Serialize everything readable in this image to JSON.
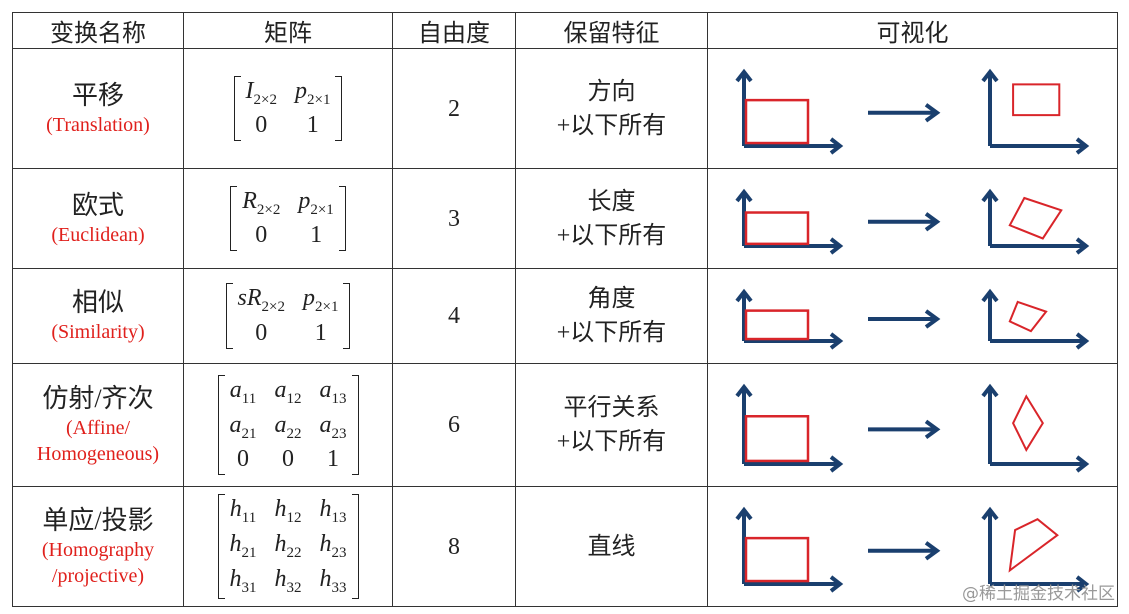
{
  "header": [
    "变换名称",
    "矩阵",
    "自由度",
    "保留特征",
    "可视化"
  ],
  "rows": [
    {
      "name": "平移",
      "en": [
        "(Translation)"
      ],
      "matrix": [
        [
          {
            "base": "I",
            "sub": "2×2"
          },
          {
            "base": "p",
            "sub": "2×1"
          }
        ],
        [
          {
            "base": "0"
          },
          {
            "base": "1"
          }
        ]
      ],
      "dof": "2",
      "features": [
        "方向",
        "+以下所有"
      ]
    },
    {
      "name": "欧式",
      "en": [
        "(Euclidean)"
      ],
      "matrix": [
        [
          {
            "base": "R",
            "sub": "2×2"
          },
          {
            "base": "p",
            "sub": "2×1"
          }
        ],
        [
          {
            "base": "0"
          },
          {
            "base": "1"
          }
        ]
      ],
      "dof": "3",
      "features": [
        "长度",
        "+以下所有"
      ]
    },
    {
      "name": "相似",
      "en": [
        "(Similarity)"
      ],
      "matrix": [
        [
          {
            "base": "sR",
            "sub": "2×2"
          },
          {
            "base": "p",
            "sub": "2×1"
          }
        ],
        [
          {
            "base": "0"
          },
          {
            "base": "1"
          }
        ]
      ],
      "dof": "4",
      "features": [
        "角度",
        "+以下所有"
      ]
    },
    {
      "name": "仿射/齐次",
      "en": [
        "(Affine/",
        "Homogeneous)"
      ],
      "matrix": [
        [
          {
            "base": "a",
            "sub": "11"
          },
          {
            "base": "a",
            "sub": "12"
          },
          {
            "base": "a",
            "sub": "13"
          }
        ],
        [
          {
            "base": "a",
            "sub": "21"
          },
          {
            "base": "a",
            "sub": "22"
          },
          {
            "base": "a",
            "sub": "23"
          }
        ],
        [
          {
            "base": "0"
          },
          {
            "base": "0"
          },
          {
            "base": "1"
          }
        ]
      ],
      "dof": "6",
      "features": [
        "平行关系",
        "+以下所有"
      ]
    },
    {
      "name": "单应/投影",
      "en": [
        "(Homography",
        "/projective)"
      ],
      "matrix": [
        [
          {
            "base": "h",
            "sub": "11"
          },
          {
            "base": "h",
            "sub": "12"
          },
          {
            "base": "h",
            "sub": "13"
          }
        ],
        [
          {
            "base": "h",
            "sub": "21"
          },
          {
            "base": "h",
            "sub": "22"
          },
          {
            "base": "h",
            "sub": "23"
          }
        ],
        [
          {
            "base": "h",
            "sub": "31"
          },
          {
            "base": "h",
            "sub": "32"
          },
          {
            "base": "h",
            "sub": "33"
          }
        ]
      ],
      "dof": "8",
      "features": [
        "直线"
      ]
    }
  ],
  "watermark": "@稀土掘金技术社区"
}
